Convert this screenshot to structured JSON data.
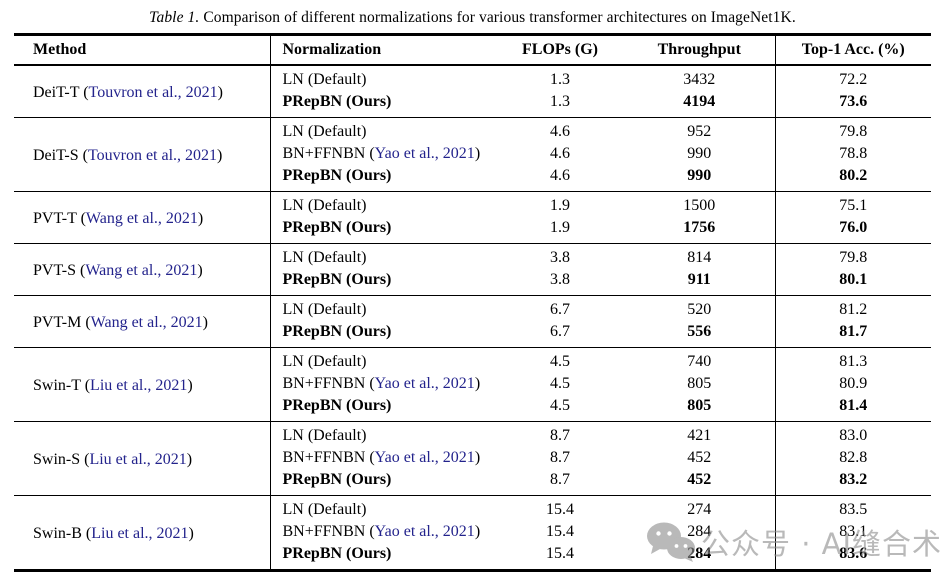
{
  "title": {
    "label": "Table 1.",
    "text": "Comparison of different normalizations for various transformer architectures on ImageNet1K."
  },
  "colors": {
    "cite_link": "#23238C",
    "watermark_gray": "#8f8f8f",
    "rule_black": "#000000"
  },
  "table": {
    "headers": [
      "Method",
      "Normalization",
      "FLOPs (G)",
      "Throughput",
      "Top-1 Acc. (%)"
    ],
    "groups": [
      {
        "method": "DeiT-T",
        "cite": "Touvron et al., 2021",
        "rows": [
          {
            "norm": "LN (Default)",
            "flops": "1.3",
            "throughput": "3432",
            "acc": "72.2",
            "bold": false
          },
          {
            "norm": "PRepBN (Ours)",
            "flops": "1.3",
            "throughput": "4194",
            "acc": "73.6",
            "bold": true
          }
        ]
      },
      {
        "method": "DeiT-S",
        "cite": "Touvron et al., 2021",
        "rows": [
          {
            "norm": "LN (Default)",
            "flops": "4.6",
            "throughput": "952",
            "acc": "79.8",
            "bold": false
          },
          {
            "norm": "BN+FFNBN",
            "norm_cite": "Yao et al., 2021",
            "flops": "4.6",
            "throughput": "990",
            "acc": "78.8",
            "bold": false
          },
          {
            "norm": "PRepBN (Ours)",
            "flops": "4.6",
            "throughput": "990",
            "acc": "80.2",
            "bold": true
          }
        ]
      },
      {
        "method": "PVT-T",
        "cite": "Wang et al., 2021",
        "rows": [
          {
            "norm": "LN (Default)",
            "flops": "1.9",
            "throughput": "1500",
            "acc": "75.1",
            "bold": false
          },
          {
            "norm": "PRepBN (Ours)",
            "flops": "1.9",
            "throughput": "1756",
            "acc": "76.0",
            "bold": true
          }
        ]
      },
      {
        "method": "PVT-S",
        "cite": "Wang et al., 2021",
        "rows": [
          {
            "norm": "LN (Default)",
            "flops": "3.8",
            "throughput": "814",
            "acc": "79.8",
            "bold": false
          },
          {
            "norm": "PRepBN (Ours)",
            "flops": "3.8",
            "throughput": "911",
            "acc": "80.1",
            "bold": true
          }
        ]
      },
      {
        "method": "PVT-M",
        "cite": "Wang et al., 2021",
        "rows": [
          {
            "norm": "LN (Default)",
            "flops": "6.7",
            "throughput": "520",
            "acc": "81.2",
            "bold": false
          },
          {
            "norm": "PRepBN (Ours)",
            "flops": "6.7",
            "throughput": "556",
            "acc": "81.7",
            "bold": true
          }
        ]
      },
      {
        "method": "Swin-T",
        "cite": "Liu et al., 2021",
        "rows": [
          {
            "norm": "LN (Default)",
            "flops": "4.5",
            "throughput": "740",
            "acc": "81.3",
            "bold": false
          },
          {
            "norm": "BN+FFNBN",
            "norm_cite": "Yao et al., 2021",
            "flops": "4.5",
            "throughput": "805",
            "acc": "80.9",
            "bold": false
          },
          {
            "norm": "PRepBN (Ours)",
            "flops": "4.5",
            "throughput": "805",
            "acc": "81.4",
            "bold": true
          }
        ]
      },
      {
        "method": "Swin-S",
        "cite": "Liu et al., 2021",
        "rows": [
          {
            "norm": "LN (Default)",
            "flops": "8.7",
            "throughput": "421",
            "acc": "83.0",
            "bold": false
          },
          {
            "norm": "BN+FFNBN",
            "norm_cite": "Yao et al., 2021",
            "flops": "8.7",
            "throughput": "452",
            "acc": "82.8",
            "bold": false
          },
          {
            "norm": "PRepBN (Ours)",
            "flops": "8.7",
            "throughput": "452",
            "acc": "83.2",
            "bold": true
          }
        ]
      },
      {
        "method": "Swin-B",
        "cite": "Liu et al., 2021",
        "rows": [
          {
            "norm": "LN (Default)",
            "flops": "15.4",
            "throughput": "274",
            "acc": "83.5",
            "bold": false
          },
          {
            "norm": "BN+FFNBN",
            "norm_cite": "Yao et al., 2021",
            "flops": "15.4",
            "throughput": "284",
            "acc": "83.1",
            "bold": false
          },
          {
            "norm": "PRepBN (Ours)",
            "flops": "15.4",
            "throughput": "284",
            "acc": "83.6",
            "bold": true
          }
        ]
      }
    ]
  },
  "watermark": {
    "icon": "wechat-icon",
    "text": "公众号 · AI缝合术"
  }
}
